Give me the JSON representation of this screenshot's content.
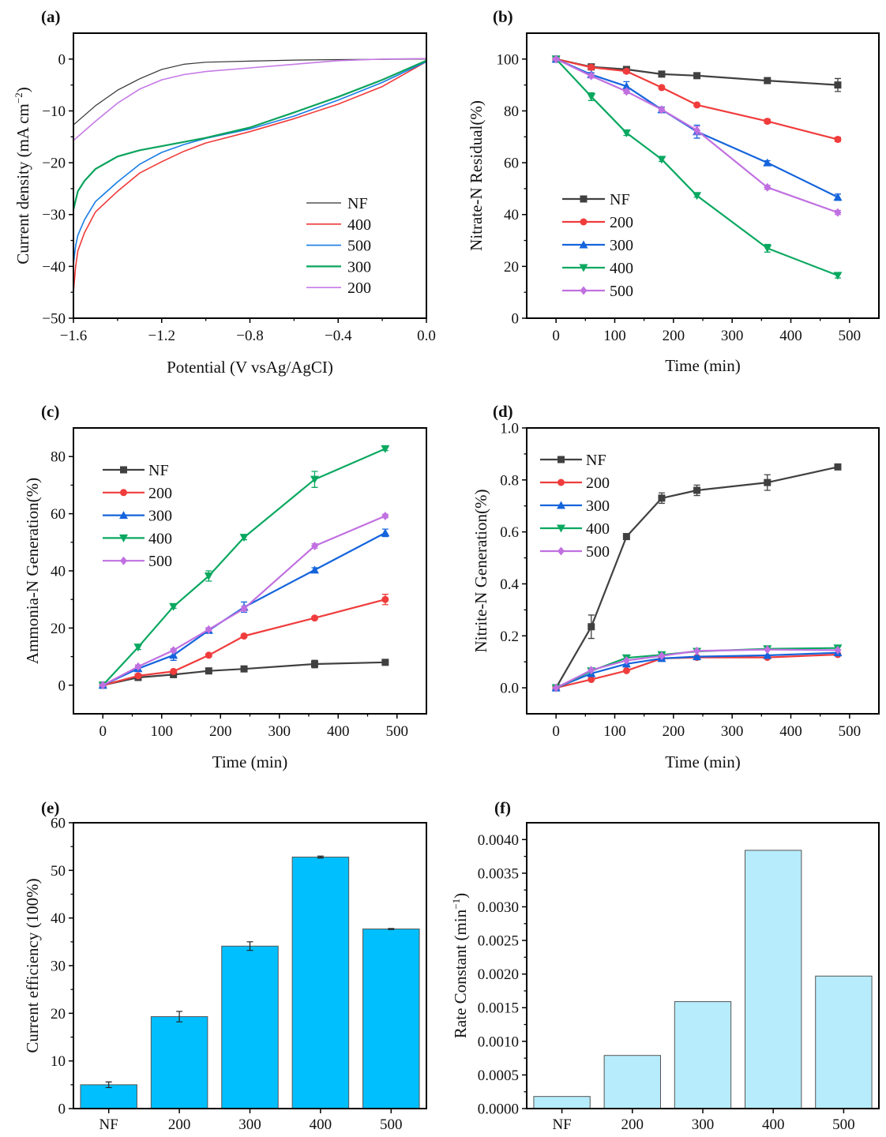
{
  "chart_data": [
    {
      "panel_label": "(a)",
      "type": "line",
      "xlabel": "Potential (V vsAg/AgCI)",
      "ylabel": "Current density (mA cm",
      "ylabel_sup": "−2",
      "ylabel_end": ")",
      "xlim": [
        -1.6,
        0.0
      ],
      "ylim": [
        -50,
        5
      ],
      "xticks": [
        -1.6,
        -1.2,
        -0.8,
        -0.4,
        0.0
      ],
      "xtick_labels": [
        "−1.6",
        "−1.2",
        "−0.8",
        "−0.4",
        "0.0"
      ],
      "xminor": [
        -1.4,
        -1.0,
        -0.6,
        -0.2
      ],
      "yticks": [
        0,
        -10,
        -20,
        -30,
        -40,
        -50
      ],
      "ytick_labels": [
        "0",
        "−10",
        "−20",
        "−30",
        "−40",
        "−50"
      ],
      "yminor": [
        -5,
        -15,
        -25,
        -35,
        -45
      ],
      "legend_placement": "lower-right",
      "markers": false,
      "series": [
        {
          "name": "NF",
          "color": "#333333",
          "width": 1.2,
          "points": [
            [
              -1.6,
              -12.7
            ],
            [
              -1.5,
              -9
            ],
            [
              -1.4,
              -6
            ],
            [
              -1.3,
              -3.8
            ],
            [
              -1.2,
              -2
            ],
            [
              -1.1,
              -1
            ],
            [
              -1.0,
              -0.6
            ],
            [
              -0.8,
              -0.4
            ],
            [
              -0.6,
              -0.2
            ],
            [
              -0.4,
              -0.1
            ],
            [
              0,
              0
            ]
          ]
        },
        {
          "name": "400",
          "color": "#f03a3a",
          "width": 1.6,
          "points": [
            [
              -1.6,
              -45
            ],
            [
              -1.59,
              -40
            ],
            [
              -1.58,
              -37
            ],
            [
              -1.55,
              -33.5
            ],
            [
              -1.5,
              -29.5
            ],
            [
              -1.4,
              -25.5
            ],
            [
              -1.3,
              -22
            ],
            [
              -1.2,
              -19.8
            ],
            [
              -1.1,
              -17.8
            ],
            [
              -1.0,
              -16.2
            ],
            [
              -0.8,
              -14
            ],
            [
              -0.6,
              -11.5
            ],
            [
              -0.4,
              -8.7
            ],
            [
              -0.2,
              -5.3
            ],
            [
              0,
              -0.5
            ]
          ]
        },
        {
          "name": "500",
          "color": "#1a7de6",
          "width": 1.6,
          "points": [
            [
              -1.6,
              -39.5
            ],
            [
              -1.59,
              -36
            ],
            [
              -1.58,
              -34
            ],
            [
              -1.55,
              -31
            ],
            [
              -1.5,
              -27.5
            ],
            [
              -1.4,
              -23.7
            ],
            [
              -1.3,
              -20.3
            ],
            [
              -1.2,
              -18
            ],
            [
              -1.1,
              -16.5
            ],
            [
              -1.0,
              -15.3
            ],
            [
              -0.8,
              -13.5
            ],
            [
              -0.6,
              -11
            ],
            [
              -0.4,
              -7.9
            ],
            [
              -0.2,
              -4.5
            ],
            [
              0,
              -0.5
            ]
          ]
        },
        {
          "name": "300",
          "color": "#0aa35c",
          "width": 2.2,
          "points": [
            [
              -1.6,
              -29
            ],
            [
              -1.58,
              -25.5
            ],
            [
              -1.55,
              -23.5
            ],
            [
              -1.5,
              -21.2
            ],
            [
              -1.4,
              -18.8
            ],
            [
              -1.3,
              -17.6
            ],
            [
              -1.2,
              -16.8
            ],
            [
              -1.1,
              -16
            ],
            [
              -1.0,
              -15.2
            ],
            [
              -0.8,
              -13.2
            ],
            [
              -0.6,
              -10.3
            ],
            [
              -0.4,
              -7.3
            ],
            [
              -0.2,
              -4
            ],
            [
              0,
              -0.3
            ]
          ]
        },
        {
          "name": "200",
          "color": "#c67ae6",
          "width": 1.6,
          "points": [
            [
              -1.6,
              -15.7
            ],
            [
              -1.5,
              -12
            ],
            [
              -1.4,
              -8.5
            ],
            [
              -1.3,
              -5.8
            ],
            [
              -1.2,
              -4
            ],
            [
              -1.1,
              -3
            ],
            [
              -1.0,
              -2.4
            ],
            [
              -0.8,
              -1.7
            ],
            [
              -0.6,
              -1
            ],
            [
              -0.4,
              -0.3
            ],
            [
              -0.2,
              0
            ],
            [
              0,
              0.1
            ]
          ]
        }
      ]
    },
    {
      "panel_label": "(b)",
      "type": "line",
      "xlabel": "Time (min)",
      "ylabel": "Nitrate-N Residual(%)",
      "xlim": [
        -50,
        550
      ],
      "ylim": [
        0,
        110
      ],
      "xticks": [
        0,
        100,
        200,
        300,
        400,
        500
      ],
      "xtick_labels": [
        "0",
        "100",
        "200",
        "300",
        "400",
        "500"
      ],
      "xminor": [
        50,
        150,
        250,
        350,
        450
      ],
      "yticks": [
        0,
        20,
        40,
        60,
        80,
        100
      ],
      "ytick_labels": [
        "0",
        "20",
        "40",
        "60",
        "80",
        "100"
      ],
      "yminor": [
        10,
        30,
        50,
        70,
        90
      ],
      "legend_placement": "lower-left",
      "markers": true,
      "x": [
        0,
        60,
        120,
        180,
        240,
        360,
        480
      ],
      "series": [
        {
          "name": "NF",
          "color": "#404040",
          "marker": "square",
          "values": [
            100,
            97,
            96,
            94.2,
            93.6,
            91.7,
            90
          ],
          "err": [
            0.5,
            0.8,
            0.6,
            0.6,
            0.6,
            0.5,
            2.5
          ]
        },
        {
          "name": "200",
          "color": "#f03c3c",
          "marker": "circle",
          "values": [
            100,
            96.8,
            95.3,
            89,
            82.3,
            76,
            69
          ],
          "err": [
            0.5,
            0.8,
            0.8,
            0.6,
            0.6,
            0.8,
            0.8
          ]
        },
        {
          "name": "300",
          "color": "#1464dc",
          "marker": "triangle-up",
          "values": [
            100,
            94,
            89.5,
            80.5,
            72,
            60,
            46.7
          ],
          "err": [
            0.5,
            0.8,
            1.8,
            1.0,
            2.5,
            0.8,
            1.2
          ]
        },
        {
          "name": "400",
          "color": "#0aa860",
          "marker": "triangle-down",
          "values": [
            100,
            85.5,
            71.5,
            61.3,
            47.3,
            27,
            16.5
          ],
          "err": [
            0.5,
            1.5,
            1.0,
            0.8,
            0.6,
            1.5,
            1.0
          ]
        },
        {
          "name": "500",
          "color": "#c070e0",
          "marker": "diamond",
          "values": [
            100,
            93.5,
            87.5,
            80.5,
            72.5,
            50.5,
            40.8
          ],
          "err": [
            0.5,
            0.8,
            0.8,
            0.8,
            1.5,
            0.8,
            0.8
          ]
        }
      ]
    },
    {
      "panel_label": "(c)",
      "type": "line",
      "xlabel": "Time (min)",
      "ylabel": "Ammonia-N Generation(%)",
      "xlim": [
        -50,
        550
      ],
      "ylim": [
        -10,
        90
      ],
      "xticks": [
        0,
        100,
        200,
        300,
        400,
        500
      ],
      "xtick_labels": [
        "0",
        "100",
        "200",
        "300",
        "400",
        "500"
      ],
      "xminor": [
        50,
        150,
        250,
        350,
        450
      ],
      "yticks": [
        0,
        20,
        40,
        60,
        80
      ],
      "ytick_labels": [
        "0",
        "20",
        "40",
        "60",
        "80"
      ],
      "yminor": [
        10,
        30,
        50,
        70
      ],
      "legend_placement": "upper-left",
      "markers": true,
      "x": [
        0,
        60,
        120,
        180,
        240,
        360,
        480
      ],
      "series": [
        {
          "name": "NF",
          "color": "#404040",
          "marker": "square",
          "values": [
            0,
            2.7,
            3.7,
            5.0,
            5.7,
            7.4,
            8.0
          ],
          "err": [
            0.3,
            0.6,
            0.6,
            1.0,
            0.8,
            1.3,
            0.6
          ]
        },
        {
          "name": "200",
          "color": "#f03c3c",
          "marker": "circle",
          "values": [
            0,
            3.3,
            4.8,
            10.5,
            17.2,
            23.5,
            30
          ],
          "err": [
            0.3,
            0.5,
            0.5,
            0.6,
            0.5,
            0.5,
            1.8
          ]
        },
        {
          "name": "300",
          "color": "#1464dc",
          "marker": "triangle-up",
          "values": [
            0,
            5.8,
            10.5,
            19.2,
            27.3,
            40.3,
            53.3
          ],
          "err": [
            0.3,
            0.8,
            1.8,
            0.8,
            1.8,
            0.8,
            1.3
          ]
        },
        {
          "name": "400",
          "color": "#0aa860",
          "marker": "triangle-down",
          "values": [
            0,
            13.3,
            27.5,
            38.2,
            51.7,
            72,
            82.7
          ],
          "err": [
            0.3,
            0.8,
            0.6,
            1.8,
            0.8,
            2.8,
            0.6
          ]
        },
        {
          "name": "500",
          "color": "#c070e0",
          "marker": "diamond",
          "values": [
            0,
            6.5,
            12.2,
            19.5,
            26.8,
            48.7,
            59.2
          ],
          "err": [
            0.3,
            0.6,
            0.6,
            0.6,
            0.8,
            0.8,
            0.6
          ]
        }
      ]
    },
    {
      "panel_label": "(d)",
      "type": "line",
      "xlabel": "Time (min)",
      "ylabel": "Nitrite-N Generation(%)",
      "xlim": [
        -50,
        550
      ],
      "ylim": [
        -0.1,
        1.0
      ],
      "xticks": [
        0,
        100,
        200,
        300,
        400,
        500
      ],
      "xtick_labels": [
        "0",
        "100",
        "200",
        "300",
        "400",
        "500"
      ],
      "xminor": [
        50,
        150,
        250,
        350,
        450
      ],
      "yticks": [
        0,
        0.2,
        0.4,
        0.6,
        0.8,
        1.0
      ],
      "ytick_labels": [
        "0.0",
        "0.2",
        "0.4",
        "0.6",
        "0.8",
        "1.0"
      ],
      "yminor": [
        0.1,
        0.3,
        0.5,
        0.7,
        0.9
      ],
      "legend_placement": "upper-left",
      "markers": true,
      "x": [
        0,
        60,
        120,
        180,
        240,
        360,
        480
      ],
      "series": [
        {
          "name": "NF",
          "color": "#404040",
          "marker": "square",
          "values": [
            0,
            0.235,
            0.582,
            0.73,
            0.76,
            0.79,
            0.85
          ],
          "err": [
            0.005,
            0.045,
            0.008,
            0.02,
            0.02,
            0.03,
            0.01
          ]
        },
        {
          "name": "200",
          "color": "#f03c3c",
          "marker": "circle",
          "values": [
            0,
            0.032,
            0.066,
            0.113,
            0.117,
            0.117,
            0.128
          ],
          "err": [
            0,
            0,
            0,
            0,
            0,
            0,
            0
          ]
        },
        {
          "name": "300",
          "color": "#1464dc",
          "marker": "triangle-up",
          "values": [
            0,
            0.055,
            0.092,
            0.113,
            0.12,
            0.125,
            0.135
          ],
          "err": [
            0,
            0,
            0,
            0,
            0,
            0,
            0
          ]
        },
        {
          "name": "400",
          "color": "#0aa860",
          "marker": "triangle-down",
          "values": [
            0,
            0.065,
            0.115,
            0.127,
            0.14,
            0.15,
            0.153
          ],
          "err": [
            0,
            0,
            0,
            0,
            0,
            0,
            0
          ]
        },
        {
          "name": "500",
          "color": "#c070e0",
          "marker": "diamond",
          "values": [
            0,
            0.068,
            0.105,
            0.123,
            0.142,
            0.147,
            0.145
          ],
          "err": [
            0,
            0,
            0,
            0,
            0,
            0,
            0
          ]
        }
      ]
    },
    {
      "panel_label": "(e)",
      "type": "bar",
      "xlabel": "",
      "ylabel": "Current efficiency (100%)",
      "ylim": [
        0,
        60
      ],
      "yticks": [
        0,
        10,
        20,
        30,
        40,
        50,
        60
      ],
      "ytick_labels": [
        "0",
        "10",
        "20",
        "30",
        "40",
        "50",
        "60"
      ],
      "yminor": [
        5,
        15,
        25,
        35,
        45,
        55
      ],
      "categories": [
        "NF",
        "200",
        "300",
        "400",
        "500"
      ],
      "values": [
        5.0,
        19.3,
        34.1,
        52.8,
        37.7
      ],
      "err": [
        0.6,
        1.1,
        0.9,
        0.2,
        0.1
      ],
      "bar_color": "#00bfff"
    },
    {
      "panel_label": "(f)",
      "type": "bar",
      "xlabel": "",
      "ylabel": "Rate Constant (min",
      "ylabel_sup": "−1",
      "ylabel_end": ")",
      "ylim": [
        0,
        0.00425
      ],
      "yticks": [
        0,
        0.0005,
        0.001,
        0.0015,
        0.002,
        0.0025,
        0.003,
        0.0035,
        0.004
      ],
      "ytick_labels": [
        "0.0000",
        "0.0005",
        "0.0010",
        "0.0015",
        "0.0020",
        "0.0025",
        "0.0030",
        "0.0035",
        "0.0040"
      ],
      "yminor": [
        0.00025,
        0.00075,
        0.00125,
        0.00175,
        0.00225,
        0.00275,
        0.00325,
        0.00375
      ],
      "categories": [
        "NF",
        "200",
        "300",
        "400",
        "500"
      ],
      "values": [
        0.00018,
        0.00079,
        0.00159,
        0.00384,
        0.00197
      ],
      "bar_color": "#b6ecfb"
    }
  ]
}
